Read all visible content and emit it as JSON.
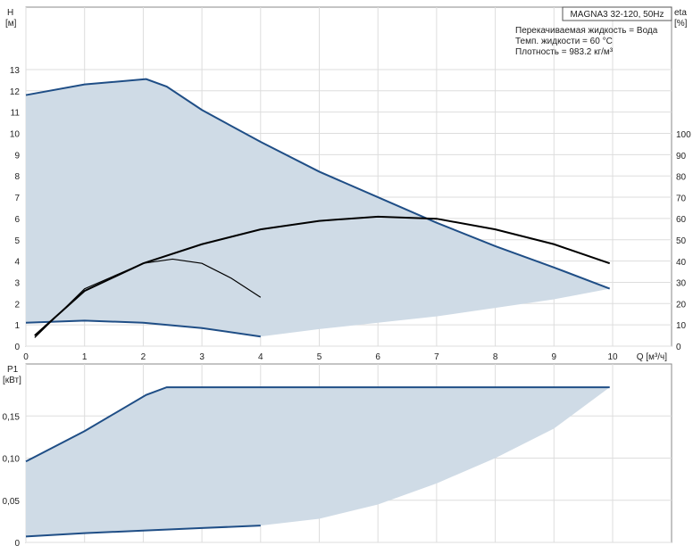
{
  "chart_data": [
    {
      "type": "line",
      "title": "MAGNA3 32-120, 50Hz",
      "notes": [
        "Перекачиваемая жидкость = Вода",
        "Темп. жидкости = 60 °C",
        "Плотность = 983.2 кг/м³"
      ],
      "ylabel": "H",
      "yunit": "[м]",
      "y2label": "eta",
      "y2unit": "[%]",
      "xlabel": "Q [м³/ч]",
      "xlim": [
        0,
        11.1
      ],
      "ylim": [
        0,
        14.5
      ],
      "y2lim": [
        0,
        145
      ],
      "grid": true,
      "xticks": [
        0,
        1,
        2,
        3,
        4,
        5,
        6,
        7,
        8,
        9,
        10
      ],
      "yticks": [
        0,
        1,
        2,
        3,
        4,
        5,
        6,
        7,
        8,
        9,
        10,
        11,
        12,
        13
      ],
      "y2ticks": [
        0,
        10,
        20,
        30,
        40,
        50,
        60,
        70,
        80,
        90,
        100
      ],
      "area_color": "#cfdbe6",
      "curve_color": "#1f4e86",
      "series": [
        {
          "axis": "H",
          "values": [
            [
              0,
              11.8
            ],
            [
              1,
              12.3
            ],
            [
              2.05,
              12.55
            ],
            [
              2.4,
              12.2
            ],
            [
              3,
              11.1
            ],
            [
              4,
              9.6
            ],
            [
              5,
              8.2
            ],
            [
              6,
              7
            ],
            [
              7,
              5.8
            ],
            [
              8,
              4.7
            ],
            [
              9,
              3.7
            ],
            [
              9.95,
              2.7
            ]
          ]
        },
        {
          "axis": "H",
          "values": [
            [
              0,
              1.1
            ],
            [
              1,
              1.2
            ],
            [
              2,
              1.1
            ],
            [
              3,
              0.85
            ],
            [
              4,
              0.45
            ]
          ]
        },
        {
          "axis": "H",
          "boundary": true,
          "values": [
            [
              4,
              0.45
            ],
            [
              5,
              0.8
            ],
            [
              6,
              1.1
            ],
            [
              7,
              1.4
            ],
            [
              8,
              1.8
            ],
            [
              9,
              2.2
            ],
            [
              9.95,
              2.7
            ]
          ]
        },
        {
          "axis": "eta",
          "values": [
            [
              0.15,
              5
            ],
            [
              1,
              26
            ],
            [
              2,
              39
            ],
            [
              3,
              48
            ],
            [
              4,
              55
            ],
            [
              5,
              59
            ],
            [
              6,
              61
            ],
            [
              7,
              60
            ],
            [
              8,
              55
            ],
            [
              9,
              48
            ],
            [
              9.95,
              39
            ]
          ]
        },
        {
          "axis": "eta",
          "values": [
            [
              0.15,
              4
            ],
            [
              1,
              27
            ],
            [
              2,
              39
            ],
            [
              2.5,
              41
            ],
            [
              3,
              39
            ],
            [
              3.5,
              32
            ],
            [
              4,
              23
            ]
          ]
        }
      ]
    },
    {
      "type": "line",
      "ylabel": "P1",
      "yunit": "[кВт]",
      "xlim": [
        0,
        11.1
      ],
      "ylim": [
        0,
        0.21
      ],
      "yticks": [
        "0",
        "0,05",
        "0,10",
        "0,15"
      ],
      "ytick_values": [
        0,
        0.05,
        0.1,
        0.15
      ],
      "series": [
        {
          "values": [
            [
              0,
              0.096
            ],
            [
              1,
              0.132
            ],
            [
              2.05,
              0.175
            ],
            [
              2.4,
              0.184
            ],
            [
              9.95,
              0.184
            ]
          ]
        },
        {
          "values": [
            [
              0,
              0.007
            ],
            [
              1,
              0.011
            ],
            [
              2,
              0.014
            ],
            [
              3,
              0.017
            ],
            [
              4,
              0.02
            ]
          ]
        },
        {
          "boundary": true,
          "values": [
            [
              4,
              0.02
            ],
            [
              5,
              0.028
            ],
            [
              6,
              0.045
            ],
            [
              7,
              0.07
            ],
            [
              8,
              0.1
            ],
            [
              9,
              0.135
            ],
            [
              9.95,
              0.184
            ]
          ]
        }
      ]
    }
  ]
}
